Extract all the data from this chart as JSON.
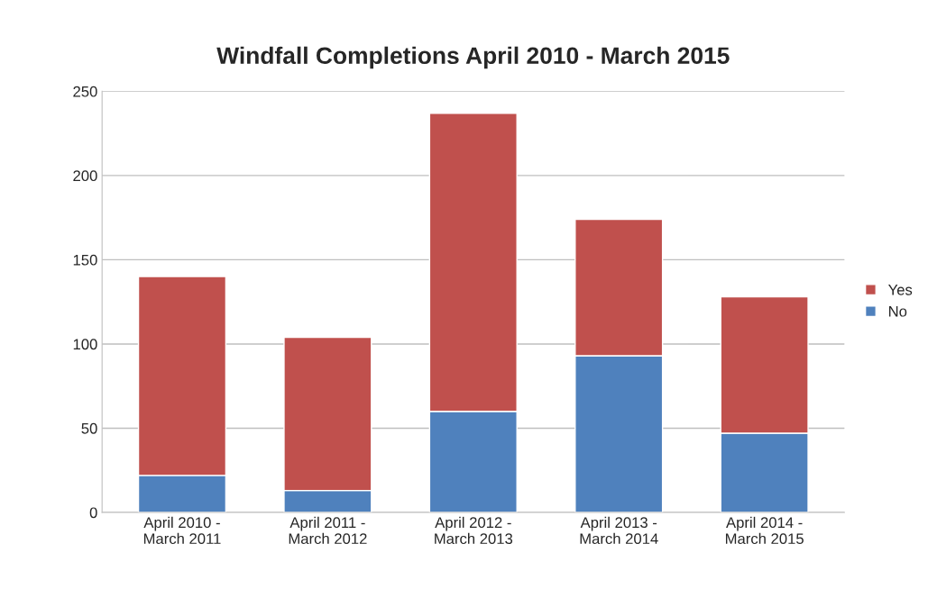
{
  "chart_data": {
    "type": "bar",
    "title": "Windfall Completions April 2010 - March 2015",
    "categories": [
      "April 2010 -\nMarch 2011",
      "April 2011 -\nMarch 2012",
      "April 2012 -\nMarch 2013",
      "April 2013 -\nMarch 2014",
      "April 2014 -\nMarch 2015"
    ],
    "stacked": true,
    "series": [
      {
        "name": "No",
        "color": "#4f81bd",
        "values": [
          22,
          13,
          60,
          93,
          47
        ]
      },
      {
        "name": "Yes",
        "color": "#c0504d",
        "values": [
          118,
          91,
          177,
          81,
          81
        ]
      }
    ],
    "ylim": [
      0,
      250
    ],
    "yticks": [
      0,
      50,
      100,
      150,
      200,
      250
    ],
    "grid": "y",
    "legend": "right"
  }
}
